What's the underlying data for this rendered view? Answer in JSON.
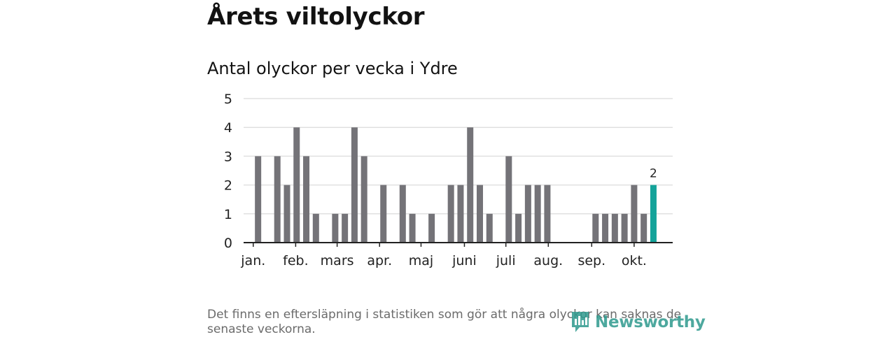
{
  "title": "Årets viltolyckor",
  "subtitle": "Antal olyckor per vecka i Ydre",
  "footnote": "Det finns en eftersläpning i statistiken som gör att några olyckor kan saknas de senaste veckorna.",
  "logo": {
    "text": "Newsworthy"
  },
  "colors": {
    "bar": "#747378",
    "highlight": "#14a39a",
    "grid": "#e0e0e0",
    "axis": "#222222"
  },
  "chart_data": {
    "type": "bar",
    "title": "Antal olyckor per vecka i Ydre",
    "xlabel": "",
    "ylabel": "",
    "ylim": [
      0,
      5
    ],
    "yticks": [
      "0",
      "1",
      "2",
      "3",
      "4",
      "5"
    ],
    "x_range": [
      0.5,
      45
    ],
    "weeks": [
      1,
      2,
      3,
      4,
      5,
      6,
      7,
      8,
      9,
      10,
      11,
      12,
      13,
      14,
      15,
      16,
      17,
      18,
      19,
      20,
      21,
      22,
      23,
      24,
      25,
      26,
      27,
      28,
      29,
      30,
      31,
      32,
      33,
      34,
      35,
      36,
      37,
      38,
      39,
      40,
      41,
      42,
      43,
      44
    ],
    "values": [
      0,
      3,
      0,
      3,
      2,
      4,
      3,
      1,
      0,
      1,
      1,
      4,
      3,
      0,
      2,
      0,
      2,
      1,
      0,
      1,
      0,
      2,
      2,
      4,
      2,
      1,
      0,
      3,
      1,
      2,
      2,
      2,
      0,
      0,
      0,
      0,
      1,
      1,
      1,
      1,
      2,
      1,
      2,
      0
    ],
    "highlight_week": 43,
    "highlight_label": "2",
    "month_ticks": [
      {
        "label": "jan.",
        "week": 1.5
      },
      {
        "label": "feb.",
        "week": 5.9
      },
      {
        "label": "mars",
        "week": 10.2
      },
      {
        "label": "apr.",
        "week": 14.6
      },
      {
        "label": "maj",
        "week": 18.9
      },
      {
        "label": "juni",
        "week": 23.4
      },
      {
        "label": "juli",
        "week": 27.7
      },
      {
        "label": "aug.",
        "week": 32.1
      },
      {
        "label": "sep.",
        "week": 36.6
      },
      {
        "label": "okt.",
        "week": 41.0
      }
    ]
  }
}
